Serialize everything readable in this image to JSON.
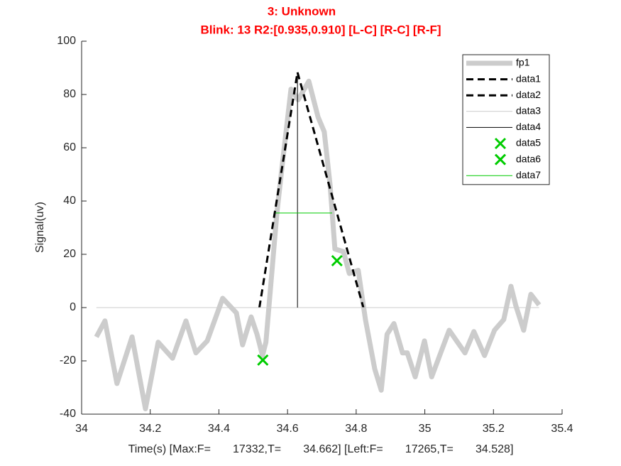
{
  "chart_data": {
    "type": "line",
    "title": "3: Unknown",
    "subtitle": "Blink: 13 R2:[0.935,0.910]  [L-C] [R-C] [R-F]",
    "xlabel": "Time(s) [Max:F=       17332,T=       34.662] [Left:F=       17265,T=       34.528]",
    "ylabel": "Signal(uv)",
    "xlim": [
      34,
      35.4
    ],
    "ylim": [
      -40,
      100
    ],
    "xticks": [
      34,
      34.2,
      34.4,
      34.6,
      34.8,
      35,
      35.2,
      35.4
    ],
    "yticks": [
      -40,
      -20,
      0,
      20,
      40,
      60,
      80,
      100
    ],
    "legend": "upper right",
    "series": [
      {
        "name": "fp1",
        "color": "#cccccc",
        "width": 7,
        "dash": false,
        "x": [
          34.043,
          34.068,
          34.103,
          34.147,
          34.186,
          34.223,
          34.265,
          34.304,
          34.333,
          34.366,
          34.411,
          34.451,
          34.469,
          34.494,
          34.511,
          34.527,
          34.537,
          34.569,
          34.585,
          34.61,
          34.631,
          34.662,
          34.689,
          34.707,
          34.724,
          34.738,
          34.763,
          34.78,
          34.806,
          34.827,
          34.854,
          34.873,
          34.89,
          34.91,
          34.935,
          34.949,
          34.972,
          34.999,
          35.02,
          35.071,
          35.117,
          35.143,
          35.174,
          35.203,
          35.23,
          35.251,
          35.265,
          35.288,
          35.309,
          35.333
        ],
        "values": [
          -11,
          -5,
          -28.5,
          -11,
          -38,
          -13,
          -19,
          -5,
          -17,
          -12.5,
          3.5,
          -2,
          -14,
          -3.5,
          -10,
          -18,
          -13,
          35.5,
          54,
          82,
          78,
          85,
          71.5,
          66,
          46,
          22,
          21,
          12.8,
          14,
          -4.5,
          -23,
          -31,
          -10,
          -6,
          -17,
          -17,
          -26,
          -12.5,
          -26,
          -8.5,
          -17,
          -9,
          -18,
          -8.5,
          -4.5,
          8,
          0.8,
          -8.5,
          5,
          1
        ]
      },
      {
        "name": "data1",
        "color": "#000000",
        "width": 3,
        "dash": true,
        "x": [
          34.518,
          34.629
        ],
        "values": [
          0,
          88.3
        ]
      },
      {
        "name": "data2",
        "color": "#000000",
        "width": 3,
        "dash": true,
        "x": [
          34.629,
          34.821
        ],
        "values": [
          88.3,
          0
        ]
      },
      {
        "name": "data3",
        "color": "#cccccc",
        "width": 1,
        "dash": false,
        "x": [
          34.043,
          35.333
        ],
        "values": [
          0,
          0
        ]
      },
      {
        "name": "data4",
        "color": "#000000",
        "width": 1,
        "dash": false,
        "x": [
          34.629,
          34.629
        ],
        "values": [
          0,
          88.3
        ]
      },
      {
        "name": "data5",
        "color": "#00cc00",
        "marker": "x",
        "x": [
          34.528
        ],
        "values": [
          -19.7
        ]
      },
      {
        "name": "data6",
        "color": "#00cc00",
        "marker": "x",
        "x": [
          34.744
        ],
        "values": [
          17.6
        ]
      },
      {
        "name": "data7",
        "color": "#00cc00",
        "width": 1,
        "dash": false,
        "x": [
          34.565,
          34.73
        ],
        "values": [
          35.5,
          35.5
        ]
      }
    ]
  }
}
